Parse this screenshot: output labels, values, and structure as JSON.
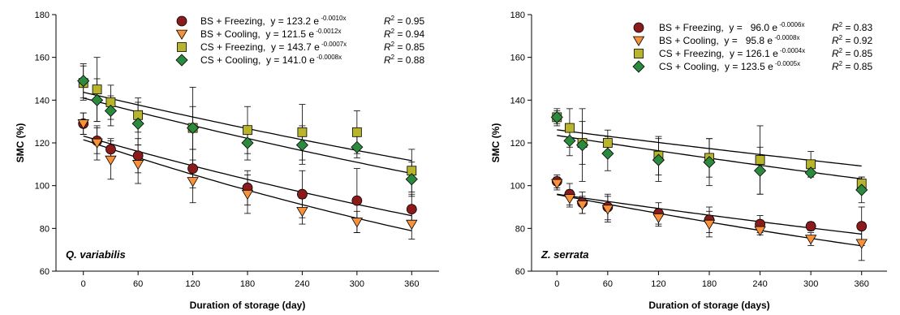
{
  "chart_data": [
    {
      "type": "scatter",
      "panel_label": "Q. variabilis",
      "xlabel": "Duration of storage (day)",
      "ylabel": "SMC (%)",
      "xlim": [
        -30,
        390
      ],
      "ylim": [
        60,
        180
      ],
      "xticks": [
        0,
        60,
        120,
        180,
        240,
        300,
        360
      ],
      "yticks": [
        60,
        80,
        100,
        120,
        140,
        160,
        180
      ],
      "legend_placement": "top-right",
      "x": [
        0,
        15,
        30,
        60,
        120,
        180,
        240,
        300,
        360
      ],
      "series": [
        {
          "name": "BS + Freezing",
          "eq": "y = 123.2 e",
          "exp": "-0.0010x",
          "r2": "= 0.95",
          "marker": "circle",
          "color": "#8b1a1a",
          "values": [
            129,
            121,
            117,
            114,
            108,
            99,
            96,
            93,
            89
          ],
          "err": [
            5,
            6,
            5,
            8,
            9,
            8,
            11,
            15,
            7
          ],
          "a": 123.2,
          "b": -0.001
        },
        {
          "name": "BS + Cooling",
          "eq": "y = 121.5 e",
          "exp": "-0.0012x",
          "r2": "= 0.94",
          "marker": "triangle",
          "color": "#f7923a",
          "values": [
            129,
            120,
            112,
            110,
            102,
            96,
            88,
            83,
            82
          ],
          "err": [
            5,
            8,
            9,
            9,
            10,
            9,
            6,
            5,
            7
          ],
          "a": 121.5,
          "b": -0.0012
        },
        {
          "name": "CS + Freezing",
          "eq": "y = 143.7 e",
          "exp": "-0.0007x",
          "r2": "= 0.85",
          "marker": "square",
          "color": "#b8b52a",
          "values": [
            148,
            145,
            139,
            133,
            127,
            126,
            125,
            125,
            107
          ],
          "err": [
            8,
            15,
            8,
            8,
            19,
            11,
            13,
            10,
            10
          ],
          "a": 143.7,
          "b": -0.0007
        },
        {
          "name": "CS + Cooling",
          "eq": "y = 141.0 e",
          "exp": "-0.0008x",
          "r2": "= 0.88",
          "marker": "diamond",
          "color": "#2b8a3e",
          "values": [
            149,
            140,
            135,
            129,
            127,
            120,
            119,
            118,
            103
          ],
          "err": [
            8,
            10,
            7,
            10,
            10,
            8,
            9,
            5,
            8
          ],
          "a": 141.0,
          "b": -0.0008
        }
      ]
    },
    {
      "type": "scatter",
      "panel_label": "Z. serrata",
      "xlabel": "Duration of storage (days)",
      "ylabel": "SMC (%)",
      "xlim": [
        -30,
        390
      ],
      "ylim": [
        60,
        180
      ],
      "xticks": [
        0,
        60,
        120,
        180,
        240,
        300,
        360
      ],
      "yticks": [
        60,
        80,
        100,
        120,
        140,
        160,
        180
      ],
      "legend_placement": "top-right",
      "x": [
        0,
        15,
        30,
        60,
        120,
        180,
        240,
        300,
        360
      ],
      "series": [
        {
          "name": "BS + Freezing",
          "eq": "y =   96.0 e",
          "exp": "-0.0006x",
          "r2": "= 0.83",
          "marker": "circle",
          "color": "#8b1a1a",
          "values": [
            102,
            96,
            92,
            90,
            87,
            84,
            82,
            81,
            81
          ],
          "err": [
            3,
            5,
            5,
            6,
            5,
            6,
            4,
            2,
            9
          ],
          "a": 96.0,
          "b": -0.0006
        },
        {
          "name": "BS + Cooling",
          "eq": "y =   95.8 e",
          "exp": "-0.0008x",
          "r2": "= 0.92",
          "marker": "triangle",
          "color": "#f7923a",
          "values": [
            101,
            94,
            91,
            89,
            85,
            82,
            79,
            75,
            73
          ],
          "err": [
            3,
            4,
            4,
            6,
            4,
            6,
            2,
            3,
            8
          ],
          "a": 95.8,
          "b": -0.0008
        },
        {
          "name": "CS + Freezing",
          "eq": "y = 126.1 e",
          "exp": "-0.0004x",
          "r2": "= 0.85",
          "marker": "square",
          "color": "#b8b52a",
          "values": [
            132,
            127,
            120,
            120,
            114,
            113,
            112,
            110,
            101
          ],
          "err": [
            3,
            9,
            10,
            6,
            9,
            9,
            16,
            6,
            3
          ],
          "a": 126.1,
          "b": -0.0004
        },
        {
          "name": "CS + Cooling",
          "eq": "y = 123.5 e",
          "exp": "-0.0005x",
          "r2": "= 0.85",
          "marker": "diamond",
          "color": "#2b8a3e",
          "values": [
            132,
            121,
            119,
            115,
            112,
            111,
            107,
            106,
            98
          ],
          "err": [
            4,
            7,
            17,
            8,
            10,
            11,
            11,
            2,
            6
          ],
          "a": 123.5,
          "b": -0.0005
        }
      ]
    }
  ]
}
